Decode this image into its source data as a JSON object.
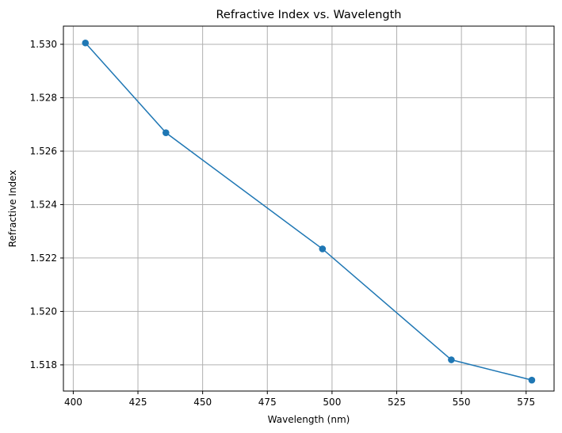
{
  "chart_data": {
    "type": "line",
    "title": "Refractive Index vs. Wavelength",
    "xlabel": "Wavelength (nm)",
    "ylabel": "Refractive Index",
    "xlim": [
      396.2,
      585.8
    ],
    "ylim": [
      1.51702,
      1.53068
    ],
    "xticks": [
      400,
      425,
      450,
      475,
      500,
      525,
      550,
      575
    ],
    "yticks": [
      1.518,
      1.52,
      1.522,
      1.524,
      1.526,
      1.528,
      1.53
    ],
    "xtick_labels": [
      "400",
      "425",
      "450",
      "475",
      "500",
      "525",
      "550",
      "575"
    ],
    "ytick_labels": [
      "1.518",
      "1.520",
      "1.522",
      "1.524",
      "1.526",
      "1.528",
      "1.530"
    ],
    "grid": true,
    "series": [
      {
        "x": [
          404.7,
          435.8,
          496.3,
          546.1,
          577.2
        ],
        "y": [
          1.53005,
          1.52669,
          1.52234,
          1.51819,
          1.51743
        ],
        "color": "#1f77b4",
        "marker": "circle"
      }
    ]
  }
}
